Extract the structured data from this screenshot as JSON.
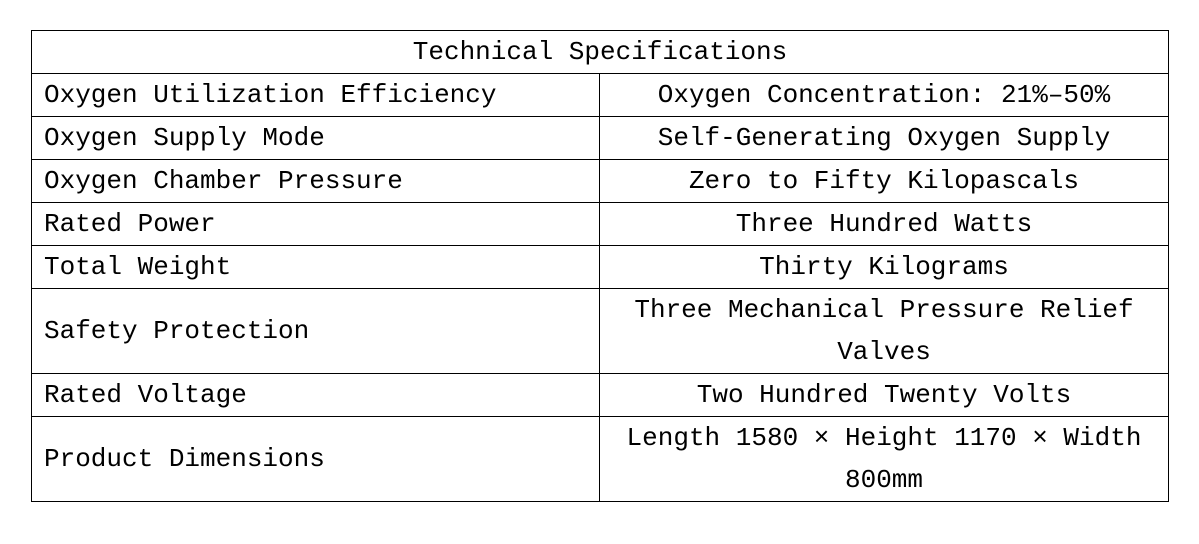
{
  "header": {
    "title": "Technical Specifications"
  },
  "table": {
    "rows": [
      [
        "Oxygen Utilization Efficiency",
        "Oxygen Concentration: 21%–50%"
      ],
      [
        "Oxygen Supply Mode",
        "Self-Generating Oxygen Supply"
      ],
      [
        "Oxygen Chamber Pressure",
        "Zero to Fifty Kilopascals"
      ],
      [
        "Rated Power",
        "Three Hundred Watts"
      ],
      [
        "Total Weight",
        "Thirty Kilograms"
      ],
      [
        "Safety Protection",
        "Three Mechanical Pressure Relief Valves"
      ],
      [
        "Rated Voltage",
        "Two Hundred Twenty Volts"
      ],
      [
        "Product Dimensions",
        "Length 1580 × Height 1170 × Width 800mm"
      ]
    ]
  }
}
